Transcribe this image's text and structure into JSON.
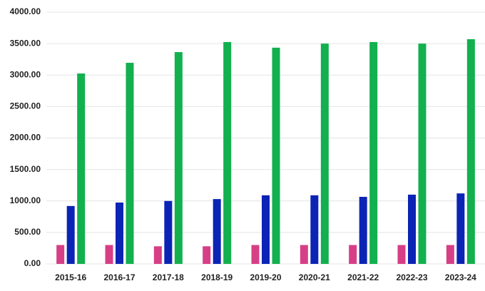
{
  "chart_data": {
    "type": "bar",
    "categories": [
      "2015-16",
      "2016-17",
      "2017-18",
      "2018-19",
      "2019-20",
      "2020-21",
      "2021-22",
      "2022-23",
      "2023-24"
    ],
    "series": [
      {
        "color": "#d63f86",
        "values": [
          300,
          300,
          280,
          280,
          300,
          300,
          300,
          300,
          300
        ]
      },
      {
        "color": "#0b24b5",
        "values": [
          920,
          975,
          1000,
          1030,
          1090,
          1090,
          1065,
          1100,
          1120
        ]
      },
      {
        "color": "#12b04f",
        "values": [
          3025,
          3195,
          3365,
          3525,
          3435,
          3500,
          3525,
          3500,
          3570
        ]
      }
    ],
    "ylim": [
      0,
      4000
    ],
    "yticks": [
      {
        "value": 0,
        "label": "0.00"
      },
      {
        "value": 500,
        "label": "500.00"
      },
      {
        "value": 1000,
        "label": "1000.00"
      },
      {
        "value": 1500,
        "label": "1500.00"
      },
      {
        "value": 2000,
        "label": "2000.00"
      },
      {
        "value": 2500,
        "label": "2500.00"
      },
      {
        "value": 3000,
        "label": "3000.00"
      },
      {
        "value": 3500,
        "label": "3500.00"
      },
      {
        "value": 4000,
        "label": "4000.00"
      }
    ],
    "grid": true
  }
}
